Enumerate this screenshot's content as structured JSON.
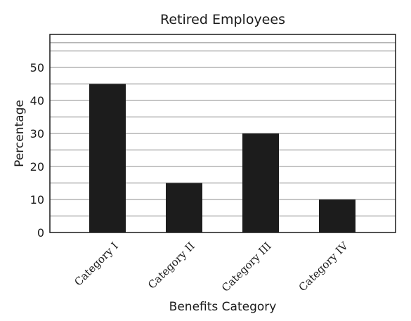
{
  "chart_data": {
    "type": "bar",
    "title": "Retired Employees",
    "xlabel": "Benefits Category",
    "ylabel": "Percentage",
    "categories": [
      "Category I",
      "Category II",
      "Category III",
      "Category IV"
    ],
    "values": [
      45,
      15,
      30,
      10
    ],
    "ylim": [
      0,
      60
    ],
    "yticks": [
      0,
      10,
      20,
      30,
      40,
      50
    ],
    "grid": true,
    "bar_color": "#1c1c1c",
    "grid_color": "#b3b3b3"
  }
}
